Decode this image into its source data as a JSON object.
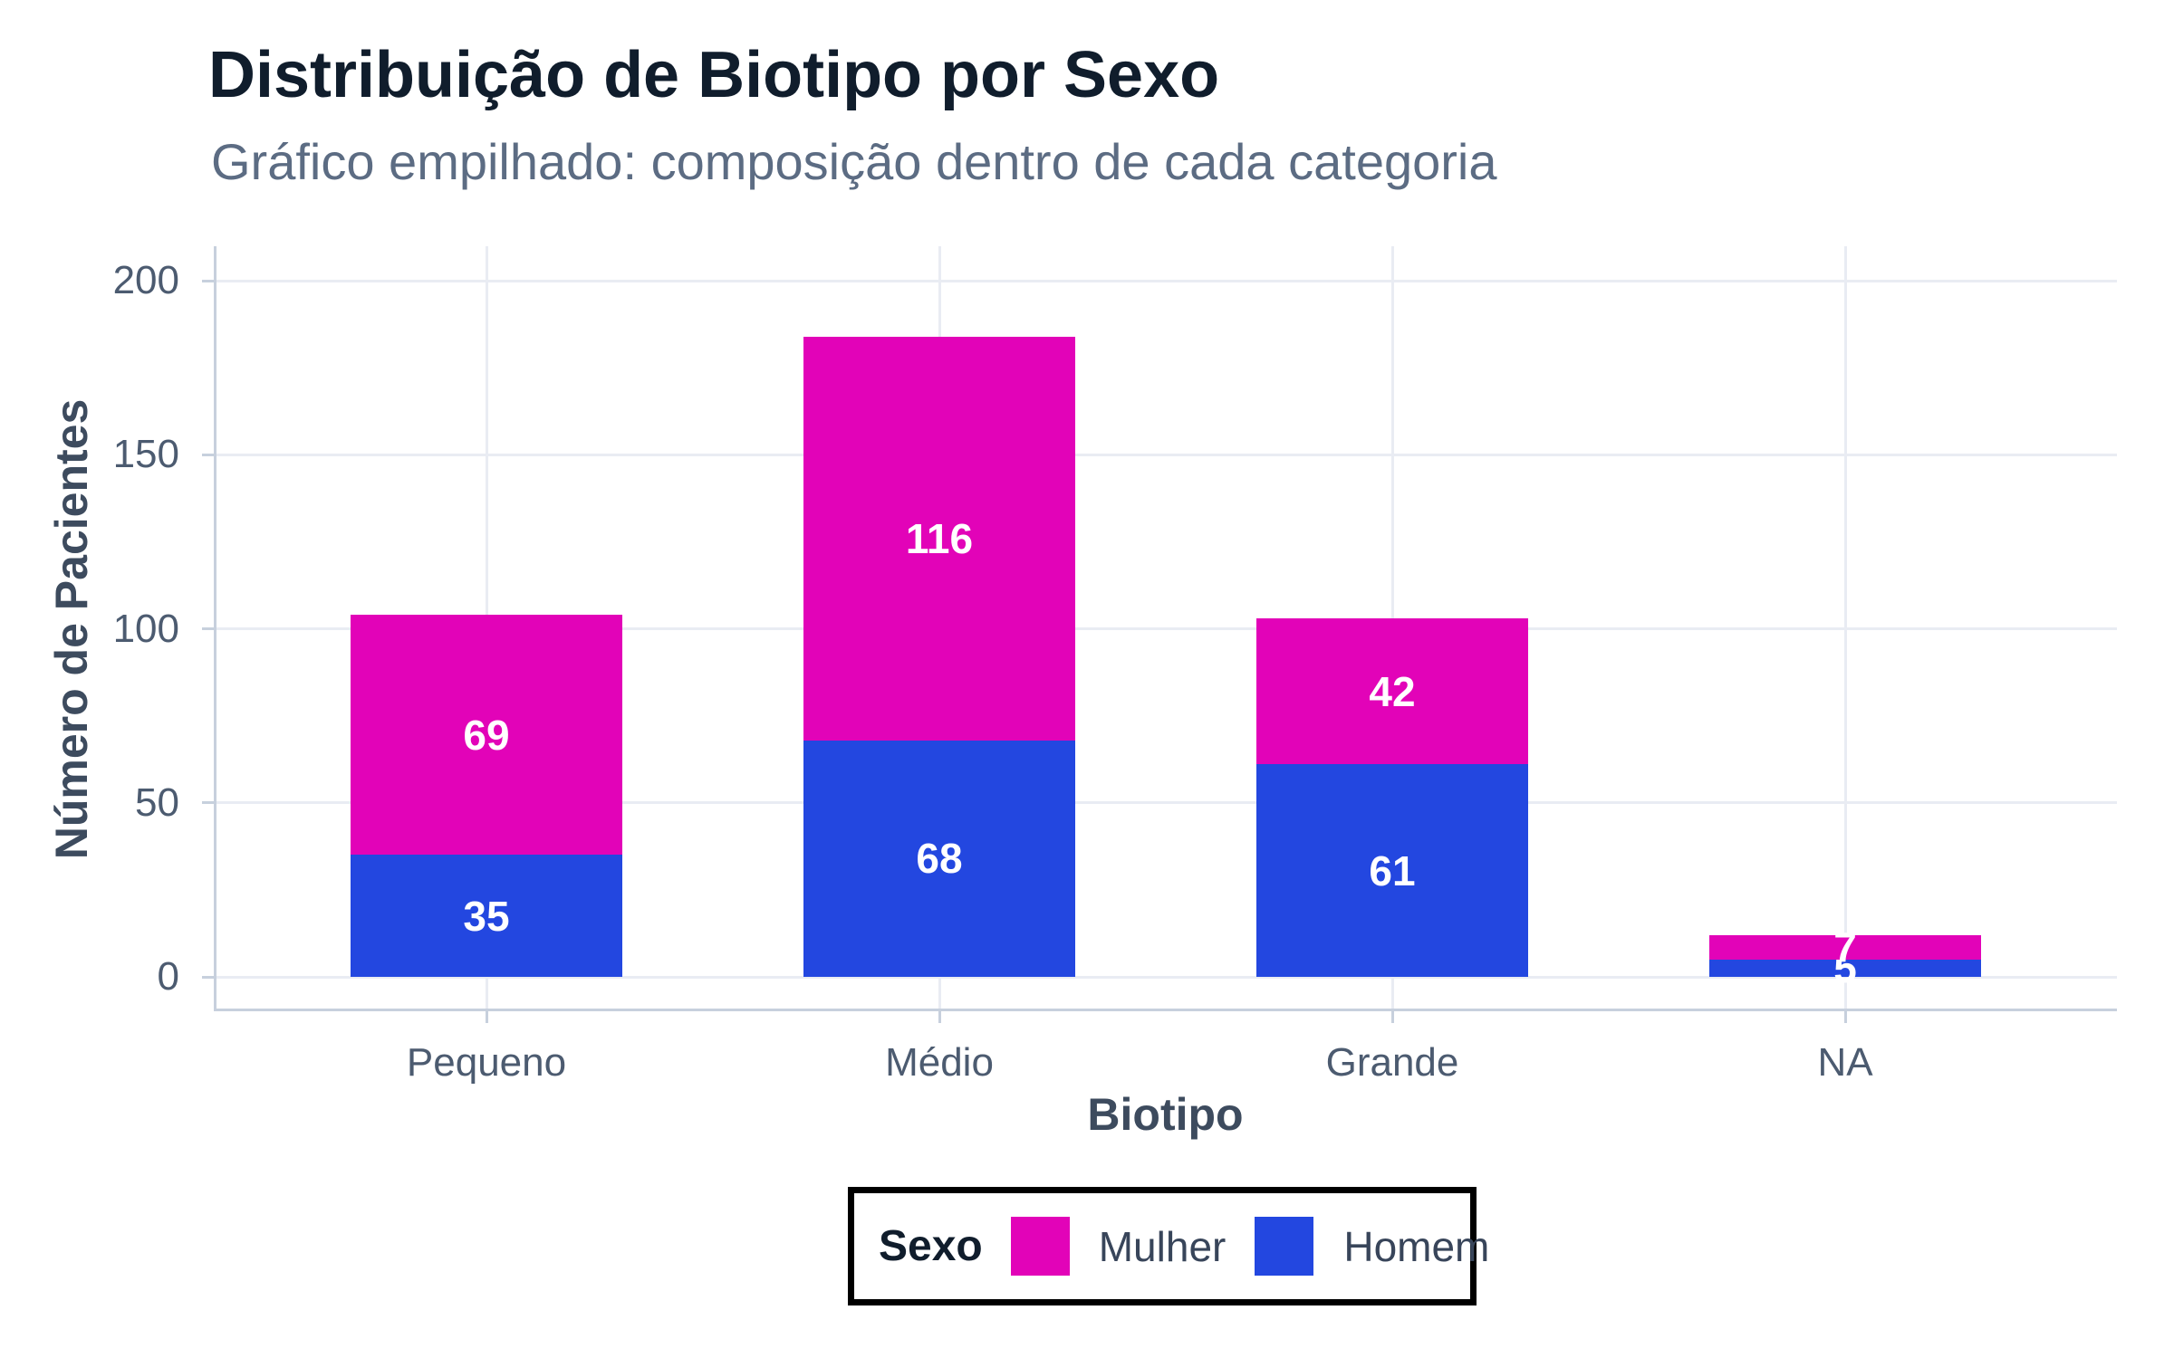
{
  "chart_data": {
    "type": "bar",
    "stacked": true,
    "title": "Distribuição de Biotipo por Sexo",
    "subtitle": "Gráfico empilhado: composição dentro de cada categoria",
    "xlabel": "Biotipo",
    "ylabel": "Número de Pacientes",
    "categories": [
      "Pequeno",
      "Médio",
      "Grande",
      "NA"
    ],
    "series": [
      {
        "name": "Mulher",
        "color": "#E203B8",
        "values": [
          69,
          116,
          42,
          7
        ]
      },
      {
        "name": "Homem",
        "color": "#2347E0",
        "values": [
          35,
          68,
          61,
          5
        ]
      }
    ],
    "stack_bottom_to_top": [
      "Homem",
      "Mulher"
    ],
    "totals": [
      104,
      184,
      103,
      12
    ],
    "ylim": [
      0,
      200
    ],
    "yticks": [
      0,
      50,
      100,
      150,
      200
    ],
    "grid": true,
    "legend_position": "bottom",
    "bar_label_color": "#FFFFFF",
    "legend": {
      "title": "Sexo",
      "entries": [
        "Mulher",
        "Homem"
      ]
    }
  },
  "palette": {
    "background": "#FFFFFF",
    "title_text": "#101D2C",
    "subtitle_text": "#5C6C83",
    "tick_text": "#4C5B70",
    "axis_title_text": "#3D4B5E",
    "axis_line": "#C7D0DD",
    "gridline": "#E9ECF3",
    "legend_border": "#000000",
    "legend_text": "#38455A"
  }
}
